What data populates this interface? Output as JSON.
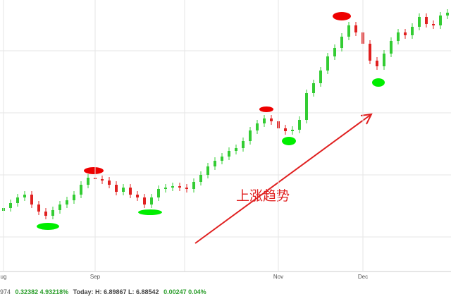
{
  "chart_data": {
    "type": "candlestick",
    "categories": [
      "ug",
      null,
      null,
      null,
      null,
      null,
      null,
      null,
      null,
      null,
      null,
      null,
      null,
      "Sep",
      null,
      null,
      null,
      null,
      null,
      null,
      null,
      null,
      null,
      null,
      null,
      null,
      null,
      null,
      null,
      null,
      null,
      null,
      null,
      null,
      null,
      null,
      null,
      null,
      null,
      "Nov",
      null,
      null,
      null,
      null,
      null,
      null,
      null,
      null,
      null,
      null,
      null,
      "Dec",
      null,
      null,
      null,
      null,
      null,
      null,
      null,
      null,
      null,
      null,
      null,
      null
    ],
    "open": [
      86,
      90,
      97,
      105,
      109,
      95,
      85,
      79,
      87,
      95,
      101,
      109,
      123,
      133,
      131,
      129,
      123,
      113,
      119,
      109,
      105,
      95,
      105,
      117,
      119,
      121,
      119,
      117,
      127,
      137,
      149,
      157,
      163,
      171,
      175,
      185,
      200,
      210,
      217,
      213,
      203,
      199,
      201,
      215,
      253,
      267,
      285,
      305,
      317,
      333,
      349,
      339,
      323,
      299,
      291,
      309,
      327,
      339,
      335,
      347,
      361,
      351,
      349,
      363
    ],
    "high": [
      95,
      102,
      110,
      114,
      114,
      100,
      90,
      92,
      100,
      106,
      114,
      128,
      138,
      138,
      136,
      134,
      128,
      124,
      124,
      114,
      110,
      110,
      122,
      124,
      126,
      126,
      124,
      132,
      142,
      154,
      162,
      168,
      176,
      180,
      190,
      205,
      215,
      222,
      222,
      218,
      208,
      206,
      220,
      258,
      272,
      290,
      310,
      322,
      338,
      354,
      354,
      344,
      328,
      304,
      314,
      332,
      344,
      344,
      352,
      366,
      366,
      356,
      368,
      372
    ],
    "low": [
      81,
      85,
      92,
      100,
      90,
      80,
      74,
      74,
      82,
      90,
      96,
      104,
      118,
      126,
      124,
      118,
      108,
      108,
      104,
      100,
      90,
      90,
      100,
      112,
      114,
      114,
      112,
      112,
      122,
      132,
      144,
      152,
      158,
      166,
      170,
      180,
      195,
      205,
      208,
      198,
      194,
      194,
      196,
      210,
      248,
      262,
      280,
      300,
      312,
      328,
      334,
      318,
      294,
      286,
      286,
      304,
      322,
      330,
      330,
      342,
      346,
      344,
      344,
      358
    ],
    "close": [
      90,
      97,
      105,
      109,
      95,
      85,
      79,
      87,
      95,
      101,
      109,
      123,
      133,
      131,
      129,
      123,
      113,
      119,
      109,
      105,
      95,
      105,
      117,
      119,
      121,
      119,
      117,
      127,
      137,
      149,
      157,
      163,
      171,
      175,
      185,
      200,
      210,
      217,
      213,
      203,
      199,
      201,
      215,
      253,
      267,
      285,
      305,
      317,
      333,
      349,
      339,
      323,
      299,
      291,
      309,
      327,
      339,
      335,
      347,
      361,
      351,
      349,
      363,
      367
    ],
    "ylim": [
      0,
      385
    ],
    "up_color": "#33cc33",
    "down_color": "#e02020",
    "annotation": "上涨趋势"
  },
  "status_bar": {
    "change": "974",
    "diff": "0.32382 4.93218%",
    "today": "Today: H: 6.89867 L: 6.88542",
    "today_change": "0.00247 0.04%"
  }
}
